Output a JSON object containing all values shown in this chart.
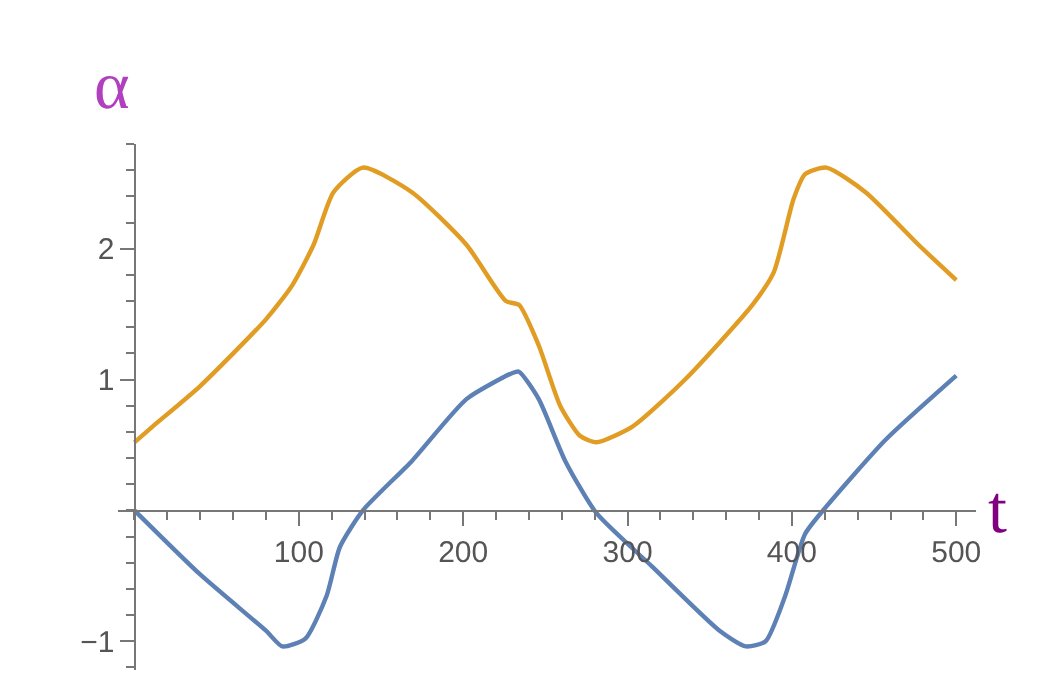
{
  "chart_data": {
    "type": "line",
    "xlabel": "t",
    "ylabel": "α",
    "marker": "none",
    "line_style": "solid",
    "xlim": [
      -10,
      512
    ],
    "ylim": [
      -1.22,
      2.8
    ],
    "xticks": [
      100,
      200,
      300,
      400,
      500
    ],
    "yticks": [
      {
        "value": -1,
        "label": "−1"
      },
      1,
      2
    ],
    "series": [
      {
        "color": "#5e81b5",
        "x": [
          0,
          40,
          80,
          90,
          104,
          117,
          125,
          139,
          169,
          202,
          230,
          234,
          246,
          262,
          281,
          315,
          356,
          372,
          384,
          396,
          408,
          421,
          457,
          500
        ],
        "values": [
          0,
          -0.49,
          -0.92,
          -1.04,
          -0.98,
          -0.65,
          -0.28,
          0,
          0.38,
          0.85,
          1.05,
          1.06,
          0.85,
          0.38,
          -0.02,
          -0.43,
          -0.92,
          -1.04,
          -1.0,
          -0.65,
          -0.18,
          0.03,
          0.54,
          1.03
        ]
      },
      {
        "color": "#e19c24",
        "x": [
          0,
          11,
          40,
          80,
          96,
          109,
          121,
          139,
          169,
          202,
          226,
          234,
          246,
          259,
          271,
          281,
          303,
          335,
          376,
          389,
          401,
          408,
          421,
          445,
          477,
          500
        ],
        "values": [
          0.52,
          0.64,
          0.95,
          1.46,
          1.72,
          2.03,
          2.43,
          2.62,
          2.43,
          2.03,
          1.6,
          1.57,
          1.26,
          0.8,
          0.57,
          0.52,
          0.64,
          1.0,
          1.57,
          1.82,
          2.38,
          2.57,
          2.62,
          2.43,
          2.03,
          1.76
        ]
      }
    ]
  }
}
